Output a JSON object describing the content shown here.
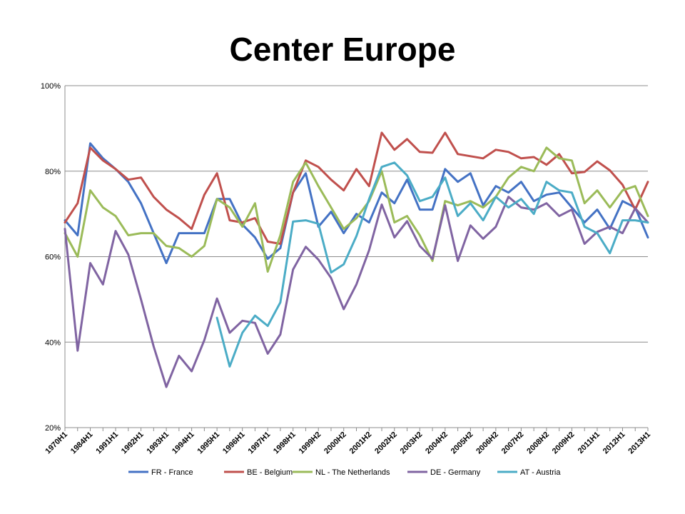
{
  "title": "Center Europe",
  "chart_data": {
    "type": "line",
    "title": "Center Europe",
    "xlabel": "",
    "ylabel": "",
    "ylim": [
      20,
      100
    ],
    "yticks": [
      "20%",
      "40%",
      "60%",
      "80%",
      "100%"
    ],
    "grid": true,
    "legend_position": "bottom",
    "categories": [
      "1970H1",
      "",
      "1984H1",
      "",
      "1991H1",
      "",
      "1992H1",
      "",
      "1993H1",
      "",
      "1994H1",
      "",
      "1995H1",
      "",
      "1996H1",
      "",
      "1997H1",
      "",
      "1998H1",
      "",
      "1999H2",
      "",
      "2000H2",
      "",
      "2001H2",
      "",
      "2002H2",
      "",
      "2003H2",
      "",
      "2004H2",
      "",
      "2005H2",
      "",
      "2006H2",
      "",
      "2007H2",
      "",
      "2008H2",
      "",
      "2009H2",
      "",
      "2011H1",
      "",
      "2012H1",
      "",
      "2013H1"
    ],
    "series": [
      {
        "name": "FR - France",
        "color": "#4472C4",
        "values": [
          68.5,
          65,
          86.5,
          83,
          80.5,
          77.5,
          72.5,
          65.5,
          58.5,
          65.5,
          65.5,
          65.5,
          73.5,
          73.5,
          67.5,
          64.5,
          59.5,
          62,
          75,
          79.5,
          67,
          70.5,
          65.5,
          70,
          68,
          75,
          72.5,
          78,
          71,
          71,
          80.5,
          77.5,
          79.5,
          72,
          76.5,
          75,
          77.5,
          73,
          74.5,
          75,
          71.5,
          68,
          71,
          66.5,
          73,
          71.5,
          64.5
        ]
      },
      {
        "name": "BE - Belgium",
        "color": "#C0504D",
        "values": [
          68,
          72.5,
          85.5,
          82.5,
          80.5,
          78,
          78.5,
          74,
          71,
          69,
          66.5,
          74.5,
          79.5,
          68.5,
          68,
          69,
          63.5,
          63,
          75,
          82.5,
          81,
          78,
          75.5,
          80.5,
          76.5,
          89,
          85,
          87.5,
          84.5,
          84.3,
          89,
          84,
          83.5,
          83,
          85,
          84.5,
          83,
          83.3,
          81.5,
          84,
          79.5,
          79.8,
          82.3,
          80.2,
          76.8,
          71,
          77.5
        ]
      },
      {
        "name": "NL - The Netherlands",
        "color": "#9BBB59",
        "values": [
          65.5,
          60,
          75.5,
          71.5,
          69.5,
          65,
          65.5,
          65.5,
          62.5,
          62,
          60,
          62.5,
          73.5,
          71.5,
          67,
          72.5,
          56.5,
          65,
          77.5,
          82,
          76.5,
          71.5,
          66.5,
          69,
          73,
          80,
          68,
          69.5,
          65,
          59,
          73,
          72,
          73,
          71.5,
          74,
          78.5,
          81,
          80,
          85.5,
          83,
          82.5,
          72.5,
          75.5,
          71.5,
          75.5,
          76.5,
          69.5
        ]
      },
      {
        "name": "DE - Germany",
        "color": "#8064A2",
        "values": [
          66.5,
          38,
          58.5,
          53.5,
          66,
          60.5,
          50,
          39,
          29.5,
          36.8,
          33.2,
          40.5,
          50.2,
          42.2,
          45,
          44.5,
          37.3,
          41.8,
          57,
          62.3,
          59.3,
          55,
          47.7,
          53.5,
          61.5,
          72.2,
          64.5,
          68.3,
          62.5,
          59.5,
          72,
          59,
          67.3,
          64.2,
          67,
          74,
          71.5,
          71,
          72.5,
          69.5,
          71,
          63,
          65.8,
          67,
          65.5,
          71.3,
          68
        ]
      },
      {
        "name": "AT - Austria",
        "color": "#4BACC6",
        "values": [
          null,
          null,
          null,
          null,
          null,
          null,
          null,
          null,
          null,
          null,
          null,
          null,
          45.7,
          34.3,
          42.2,
          46.2,
          43.8,
          49.3,
          68.2,
          68.5,
          67.7,
          56.3,
          58.2,
          64.8,
          73.5,
          81,
          82,
          79,
          73,
          74,
          78.5,
          69.5,
          72.5,
          68.5,
          74,
          71.5,
          73.5,
          70,
          77.5,
          75.5,
          75,
          67,
          65.5,
          60.8,
          68.5,
          68.5,
          68
        ]
      }
    ]
  }
}
